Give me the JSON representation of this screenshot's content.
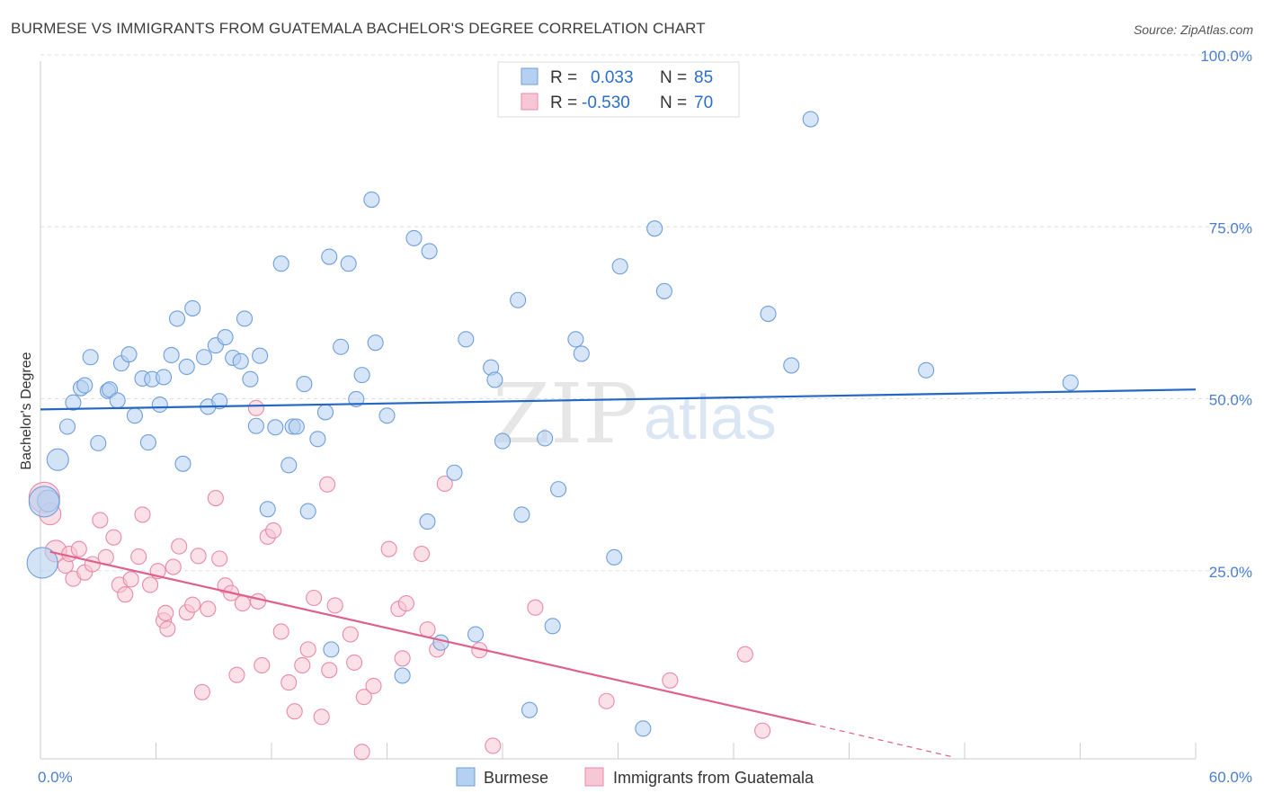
{
  "title": "BURMESE VS IMMIGRANTS FROM GUATEMALA BACHELOR'S DEGREE CORRELATION CHART",
  "source": "Source: ZipAtlas.com",
  "watermark": {
    "part1": "ZIP",
    "part2": "atlas"
  },
  "colors": {
    "blue_fill": "#b5d0f0",
    "blue_stroke": "#6f9fdc",
    "blue_line": "#2468c4",
    "pink_fill": "#f8c7d6",
    "pink_stroke": "#e98aa9",
    "pink_line": "#e0608c",
    "grid": "#dddddd",
    "axis_text": "#4a7fd0"
  },
  "legend": {
    "rows": [
      {
        "r_label": "R =",
        "r_value": "0.033",
        "n_label": "N =",
        "n_value": "85"
      },
      {
        "r_label": "R =",
        "r_value": "-0.530",
        "n_label": "N =",
        "n_value": "70"
      }
    ]
  },
  "bottom_legend": [
    "Burmese",
    "Immigrants from Guatemala"
  ],
  "chart_data": {
    "type": "scatter",
    "title": "BURMESE VS IMMIGRANTS FROM GUATEMALA BACHELOR'S DEGREE CORRELATION CHART",
    "xlabel": "",
    "ylabel": "Bachelor's Degree",
    "xlim": [
      0,
      60
    ],
    "ylim": [
      0,
      100
    ],
    "x_tick_labels": [
      "0.0%",
      "60.0%"
    ],
    "y_ticks": [
      25,
      50,
      75,
      100
    ],
    "y_tick_labels": [
      "25.0%",
      "50.0%",
      "75.0%",
      "100.0%"
    ],
    "grid": "horizontal dashed",
    "legend_position": "top-center",
    "series": [
      {
        "name": "Burmese",
        "r": 0.033,
        "n": 85,
        "trend": {
          "x": [
            0,
            60
          ],
          "y": [
            50.8,
            53.7
          ]
        },
        "points": [
          [
            0.1,
            28.5
          ],
          [
            0.4,
            37.5
          ],
          [
            0.9,
            43.5
          ],
          [
            1.4,
            48.3
          ],
          [
            1.7,
            51.8
          ],
          [
            2.1,
            53.9
          ],
          [
            2.3,
            54.3
          ],
          [
            2.6,
            58.4
          ],
          [
            3.0,
            45.9
          ],
          [
            3.5,
            53.5
          ],
          [
            3.6,
            53.7
          ],
          [
            4.0,
            52.1
          ],
          [
            4.2,
            57.5
          ],
          [
            4.6,
            58.8
          ],
          [
            4.9,
            49.9
          ],
          [
            5.3,
            55.3
          ],
          [
            5.6,
            46.0
          ],
          [
            5.8,
            55.2
          ],
          [
            6.2,
            51.5
          ],
          [
            6.4,
            55.5
          ],
          [
            6.8,
            58.7
          ],
          [
            7.1,
            64.0
          ],
          [
            7.4,
            42.9
          ],
          [
            7.6,
            57.0
          ],
          [
            7.9,
            65.5
          ],
          [
            8.5,
            58.4
          ],
          [
            8.7,
            51.2
          ],
          [
            9.1,
            60.1
          ],
          [
            9.3,
            52.0
          ],
          [
            9.6,
            61.3
          ],
          [
            10.0,
            58.3
          ],
          [
            10.4,
            57.8
          ],
          [
            10.6,
            64.0
          ],
          [
            10.9,
            55.2
          ],
          [
            11.2,
            48.4
          ],
          [
            11.4,
            58.6
          ],
          [
            11.8,
            36.3
          ],
          [
            12.2,
            48.2
          ],
          [
            12.5,
            72.0
          ],
          [
            12.9,
            42.7
          ],
          [
            13.1,
            48.3
          ],
          [
            13.3,
            48.3
          ],
          [
            13.7,
            54.5
          ],
          [
            13.9,
            36.0
          ],
          [
            14.4,
            46.5
          ],
          [
            14.8,
            50.4
          ],
          [
            15.0,
            73.0
          ],
          [
            15.1,
            15.9
          ],
          [
            15.6,
            59.9
          ],
          [
            16.0,
            72.0
          ],
          [
            16.4,
            52.3
          ],
          [
            16.7,
            55.8
          ],
          [
            17.2,
            81.3
          ],
          [
            17.4,
            60.5
          ],
          [
            18.0,
            49.9
          ],
          [
            18.8,
            12.1
          ],
          [
            19.4,
            75.7
          ],
          [
            20.1,
            34.5
          ],
          [
            20.2,
            73.8
          ],
          [
            20.8,
            16.9
          ],
          [
            21.5,
            41.6
          ],
          [
            22.1,
            61.0
          ],
          [
            22.6,
            18.1
          ],
          [
            23.4,
            56.9
          ],
          [
            23.6,
            55.1
          ],
          [
            24.0,
            46.2
          ],
          [
            24.8,
            66.7
          ],
          [
            25.0,
            35.5
          ],
          [
            25.4,
            7.1
          ],
          [
            26.2,
            46.6
          ],
          [
            26.6,
            19.3
          ],
          [
            26.9,
            39.2
          ],
          [
            27.8,
            61.0
          ],
          [
            28.1,
            58.9
          ],
          [
            29.8,
            29.3
          ],
          [
            30.1,
            71.6
          ],
          [
            31.3,
            4.4
          ],
          [
            31.9,
            77.1
          ],
          [
            32.4,
            68.0
          ],
          [
            37.8,
            64.7
          ],
          [
            39.0,
            57.2
          ],
          [
            40.0,
            93.0
          ],
          [
            46.0,
            56.5
          ],
          [
            53.5,
            54.7
          ],
          [
            0.2,
            37.4
          ]
        ]
      },
      {
        "name": "Immigrants from Guatemala",
        "r": -0.53,
        "n": 70,
        "trend": {
          "x": [
            0.5,
            40.0
          ],
          "y": [
            30.1,
            5.1
          ]
        },
        "trend_dashed": {
          "x": [
            40.0,
            47.5
          ],
          "y": [
            5.1,
            0.2
          ]
        },
        "points": [
          [
            0.2,
            38.0
          ],
          [
            0.5,
            35.6
          ],
          [
            0.8,
            30.2
          ],
          [
            1.3,
            28.1
          ],
          [
            1.5,
            29.8
          ],
          [
            1.7,
            26.2
          ],
          [
            2.0,
            30.5
          ],
          [
            2.3,
            27.1
          ],
          [
            2.7,
            28.3
          ],
          [
            3.1,
            34.7
          ],
          [
            3.4,
            29.3
          ],
          [
            3.8,
            32.2
          ],
          [
            4.1,
            25.3
          ],
          [
            4.4,
            23.9
          ],
          [
            4.7,
            26.1
          ],
          [
            5.1,
            29.4
          ],
          [
            5.3,
            35.5
          ],
          [
            5.7,
            25.3
          ],
          [
            6.1,
            27.3
          ],
          [
            6.4,
            20.1
          ],
          [
            6.6,
            18.9
          ],
          [
            6.9,
            27.9
          ],
          [
            7.2,
            30.9
          ],
          [
            7.6,
            21.3
          ],
          [
            7.9,
            22.4
          ],
          [
            8.2,
            29.5
          ],
          [
            8.4,
            9.7
          ],
          [
            8.7,
            21.8
          ],
          [
            9.1,
            37.9
          ],
          [
            9.3,
            29.1
          ],
          [
            9.6,
            25.2
          ],
          [
            9.9,
            24.1
          ],
          [
            10.2,
            12.2
          ],
          [
            10.5,
            22.6
          ],
          [
            11.2,
            51.0
          ],
          [
            11.5,
            13.6
          ],
          [
            11.8,
            32.3
          ],
          [
            12.1,
            33.2
          ],
          [
            12.5,
            18.5
          ],
          [
            12.9,
            11.1
          ],
          [
            13.2,
            6.9
          ],
          [
            13.6,
            13.6
          ],
          [
            13.9,
            15.9
          ],
          [
            14.2,
            23.4
          ],
          [
            14.6,
            6.1
          ],
          [
            14.9,
            39.9
          ],
          [
            15.0,
            12.9
          ],
          [
            15.3,
            22.3
          ],
          [
            16.1,
            18.1
          ],
          [
            16.3,
            14.0
          ],
          [
            16.7,
            1.0
          ],
          [
            16.8,
            9.0
          ],
          [
            17.3,
            10.6
          ],
          [
            18.1,
            30.5
          ],
          [
            18.6,
            21.8
          ],
          [
            18.8,
            14.6
          ],
          [
            19.0,
            22.6
          ],
          [
            19.8,
            29.8
          ],
          [
            20.1,
            18.8
          ],
          [
            20.6,
            15.9
          ],
          [
            21.0,
            40.0
          ],
          [
            22.8,
            15.8
          ],
          [
            23.5,
            1.9
          ],
          [
            25.7,
            22.0
          ],
          [
            29.4,
            8.4
          ],
          [
            32.7,
            11.4
          ],
          [
            36.6,
            15.2
          ],
          [
            37.5,
            4.1
          ],
          [
            11.3,
            22.9
          ],
          [
            6.5,
            21.2
          ]
        ]
      }
    ]
  }
}
